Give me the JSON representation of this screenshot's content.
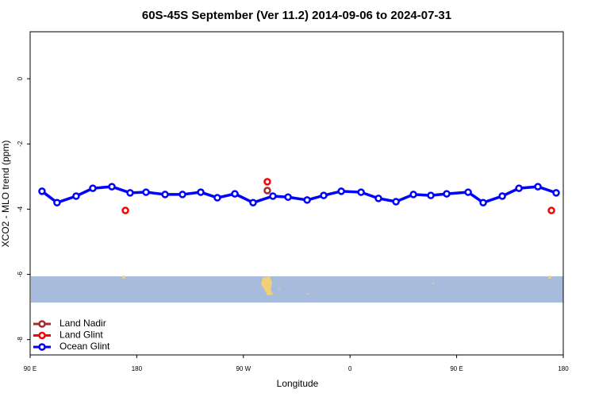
{
  "chart_data": {
    "type": "line",
    "title": "60S-45S September (Ver 11.2)   2014-09-06 to 2024-07-31",
    "x_label": "Longitude",
    "y_label": "XCO2 - MLO trend (ppm)",
    "xlim": [
      90,
      540
    ],
    "ylim": [
      -8.47,
      1.44
    ],
    "xticks": [
      {
        "value": 90,
        "label": "90 E"
      },
      180,
      {
        "value": 270,
        "label": "90 W"
      },
      {
        "value": 360,
        "label": "0"
      },
      {
        "value": 450,
        "label": "90 E"
      },
      {
        "value": 540,
        "label": "180"
      }
    ],
    "yticks": [
      0,
      -2,
      -4,
      -6,
      -8
    ],
    "legend": "bottom-left",
    "series": [
      {
        "name": "Land Nadir",
        "color": "#a52a2a",
        "connected": false,
        "x": [
          290.2
        ],
        "values": [
          -3.43
        ]
      },
      {
        "name": "Land Glint",
        "color": "#ff0000",
        "connected": false,
        "x": [
          170.4,
          290.2,
          530
        ],
        "values": [
          -4.04,
          -3.16,
          -4.04
        ]
      },
      {
        "name": "Ocean Glint",
        "color": "#0000ff",
        "connected": true,
        "x": [
          100,
          112.7,
          128.8,
          142.9,
          159,
          174.4,
          187.8,
          203.9,
          218.6,
          234,
          248,
          262.8,
          278.2,
          294.9,
          307.7,
          323.8,
          337.8,
          352.6,
          369.3,
          384,
          398.8,
          413.5,
          428.2,
          441.6,
          459.7,
          472.4,
          488.5,
          502.6,
          518.6,
          534
        ],
        "values": [
          -3.45,
          -3.8,
          -3.6,
          -3.36,
          -3.31,
          -3.5,
          -3.48,
          -3.55,
          -3.55,
          -3.48,
          -3.65,
          -3.53,
          -3.8,
          -3.6,
          -3.63,
          -3.72,
          -3.58,
          -3.45,
          -3.48,
          -3.67,
          -3.77,
          -3.55,
          -3.58,
          -3.53,
          -3.48,
          -3.8,
          -3.6,
          -3.36,
          -3.31,
          -3.5
        ]
      }
    ]
  }
}
